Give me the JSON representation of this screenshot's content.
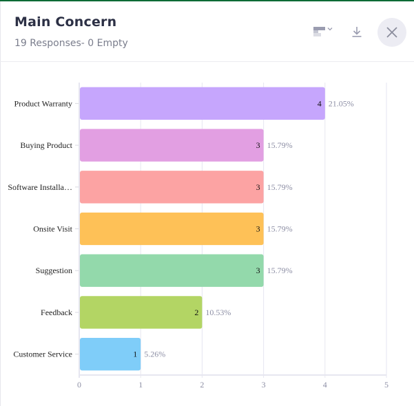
{
  "header": {
    "title": "Main Concern",
    "subtitle": "19 Responses- 0 Empty",
    "icons": {
      "chart_type": "bar-chart-type-icon",
      "download": "download-icon",
      "close": "close-icon"
    }
  },
  "colors": {
    "top_accent": "#0a6b35",
    "grid": "#e6e6f0",
    "pct_label": "#8c8ea4",
    "tick_label": "#8c8ea4"
  },
  "chart_data": {
    "type": "bar",
    "orientation": "horizontal",
    "title": "Main Concern",
    "xlabel": "",
    "ylabel": "",
    "xlim": [
      0,
      5
    ],
    "x_ticks": [
      0,
      1,
      2,
      3,
      4,
      5
    ],
    "grid": true,
    "categories": [
      "Product Warranty",
      "Buying Product",
      "Software Installa…",
      "Onsite Visit",
      "Suggestion",
      "Feedback",
      "Customer Service"
    ],
    "values": [
      4,
      3,
      3,
      3,
      3,
      2,
      1
    ],
    "percent_labels": [
      "21.05%",
      "15.79%",
      "15.79%",
      "15.79%",
      "15.79%",
      "10.53%",
      "5.26%"
    ],
    "bar_colors": [
      "#c6a6fd",
      "#e29fe2",
      "#fca3a3",
      "#fec157",
      "#93d9ab",
      "#b3d564",
      "#7fcdf9"
    ]
  }
}
